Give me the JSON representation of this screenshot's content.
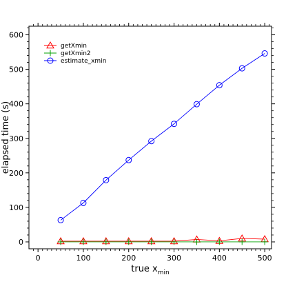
{
  "chart_data": {
    "type": "line",
    "xlabel": "true x",
    "xlabel_subscript": "min",
    "ylabel": "elapsed time (s)",
    "xlim": [
      -20,
      515
    ],
    "ylim": [
      -20,
      625
    ],
    "xticks": [
      0,
      100,
      200,
      300,
      400,
      500
    ],
    "yticks": [
      0,
      100,
      200,
      300,
      400,
      500,
      600
    ],
    "x_minor_ticks": [
      -10,
      10,
      20,
      30,
      40,
      50,
      60,
      70,
      80,
      90,
      110,
      120,
      130,
      140,
      150,
      160,
      170,
      180,
      190,
      210,
      220,
      230,
      240,
      250,
      260,
      270,
      280,
      290,
      310,
      320,
      330,
      340,
      350,
      360,
      370,
      380,
      390,
      410,
      420,
      430,
      440,
      450,
      460,
      470,
      480,
      490,
      510
    ],
    "y_minor_ticks": [
      20,
      40,
      60,
      80,
      120,
      140,
      160,
      180,
      220,
      240,
      260,
      280,
      320,
      340,
      360,
      380,
      420,
      440,
      460,
      480,
      520,
      540,
      560,
      580,
      620
    ],
    "x": [
      50,
      100,
      150,
      200,
      250,
      300,
      350,
      400,
      450,
      500
    ],
    "series": [
      {
        "name": "getXmin",
        "color": "#ff0000",
        "marker": "triangle",
        "values": [
          2,
          2,
          2,
          2,
          2,
          2,
          7,
          3,
          10,
          8
        ]
      },
      {
        "name": "getXmin2",
        "color": "#00a000",
        "marker": "plus",
        "values": [
          0,
          0,
          0,
          0,
          0,
          0,
          0,
          0,
          0,
          0
        ]
      },
      {
        "name": "estimate_xmin",
        "color": "#0000ff",
        "marker": "circle",
        "values": [
          63,
          113,
          179,
          237,
          292,
          342,
          399,
          454,
          503,
          546
        ]
      }
    ],
    "legend_position": "top-left",
    "grid": false
  }
}
